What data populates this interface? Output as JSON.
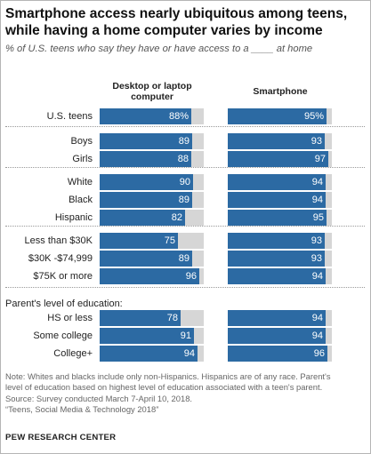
{
  "title_lines": [
    "Smartphone access nearly ubiquitous among teens,",
    "while having a home computer varies by income"
  ],
  "subtitle": "% of U.S. teens who say they have or have access to a ____ at home",
  "chart_data": {
    "type": "bar",
    "orientation": "horizontal",
    "xlim": [
      0,
      100
    ],
    "series": [
      {
        "name": "Desktop or laptop computer",
        "values": [
          88,
          89,
          88,
          90,
          89,
          82,
          75,
          89,
          96,
          78,
          91,
          94
        ]
      },
      {
        "name": "Smartphone",
        "values": [
          95,
          93,
          97,
          94,
          94,
          95,
          93,
          93,
          94,
          94,
          94,
          96
        ]
      }
    ],
    "categories": [
      "U.S. teens",
      "Boys",
      "Girls",
      "White",
      "Black",
      "Hispanic",
      "Less than $30K",
      "$30K -$74,999",
      "$75K or more",
      "HS or less",
      "Some college",
      "College+"
    ],
    "value_labels": {
      "computer": [
        "88%",
        "89",
        "88",
        "90",
        "89",
        "82",
        "75",
        "89",
        "96",
        "78",
        "91",
        "94"
      ],
      "smartphone": [
        "95%",
        "93",
        "97",
        "94",
        "94",
        "95",
        "93",
        "93",
        "94",
        "94",
        "94",
        "96"
      ]
    },
    "section_label": "Parent's level of education:",
    "colors": {
      "bar": "#2c6aa3",
      "remainder": "#d6d6d6"
    }
  },
  "column_headers": {
    "computer_line1": "Desktop or laptop",
    "computer_line2": "computer",
    "smartphone": "Smartphone"
  },
  "note_lines": [
    "Note: Whites and blacks include only non-Hispanics. Hispanics are of any race. Parent's",
    "level of education based on highest level of education associated with a teen's parent.",
    "Source: Survey conducted March 7-April 10, 2018.",
    "“Teens, Social Media & Technology 2018”"
  ],
  "brand": "PEW RESEARCH CENTER"
}
